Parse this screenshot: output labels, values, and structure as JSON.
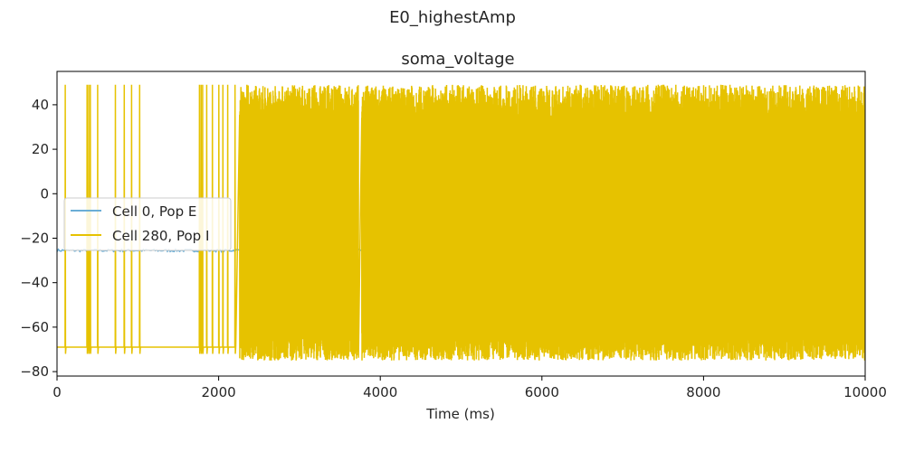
{
  "figure": {
    "suptitle": "E0_highestAmp"
  },
  "chart_data": {
    "type": "line",
    "title": "soma_voltage",
    "xlabel": "Time (ms)",
    "ylabel": "",
    "xlim": [
      0,
      10000
    ],
    "ylim": [
      -82,
      55
    ],
    "xticks": [
      0,
      2000,
      4000,
      6000,
      8000,
      10000
    ],
    "yticks": [
      40,
      20,
      0,
      -20,
      -40,
      -60,
      -80
    ],
    "grid": false,
    "legend_position": "center-left",
    "series": [
      {
        "name": "Cell 0, Pop E",
        "color": "#6baed6",
        "baseline": -25.5,
        "x_range": [
          0,
          10000
        ]
      },
      {
        "name": "Cell 280, Pop I",
        "color": "#e6c200",
        "resting": -69,
        "peak": 49,
        "trough": -72,
        "sparse_spike_times": [
          100,
          370,
          390,
          410,
          500,
          720,
          830,
          920,
          1020,
          1760,
          1780,
          1800,
          1850,
          1920,
          2000,
          2050,
          2110,
          2200
        ],
        "dense_segments": [
          [
            2260,
            3730
          ],
          [
            3770,
            10000
          ]
        ],
        "dense_peak_range": [
          30,
          49
        ],
        "dense_trough_range": [
          -75,
          -62
        ]
      }
    ]
  }
}
